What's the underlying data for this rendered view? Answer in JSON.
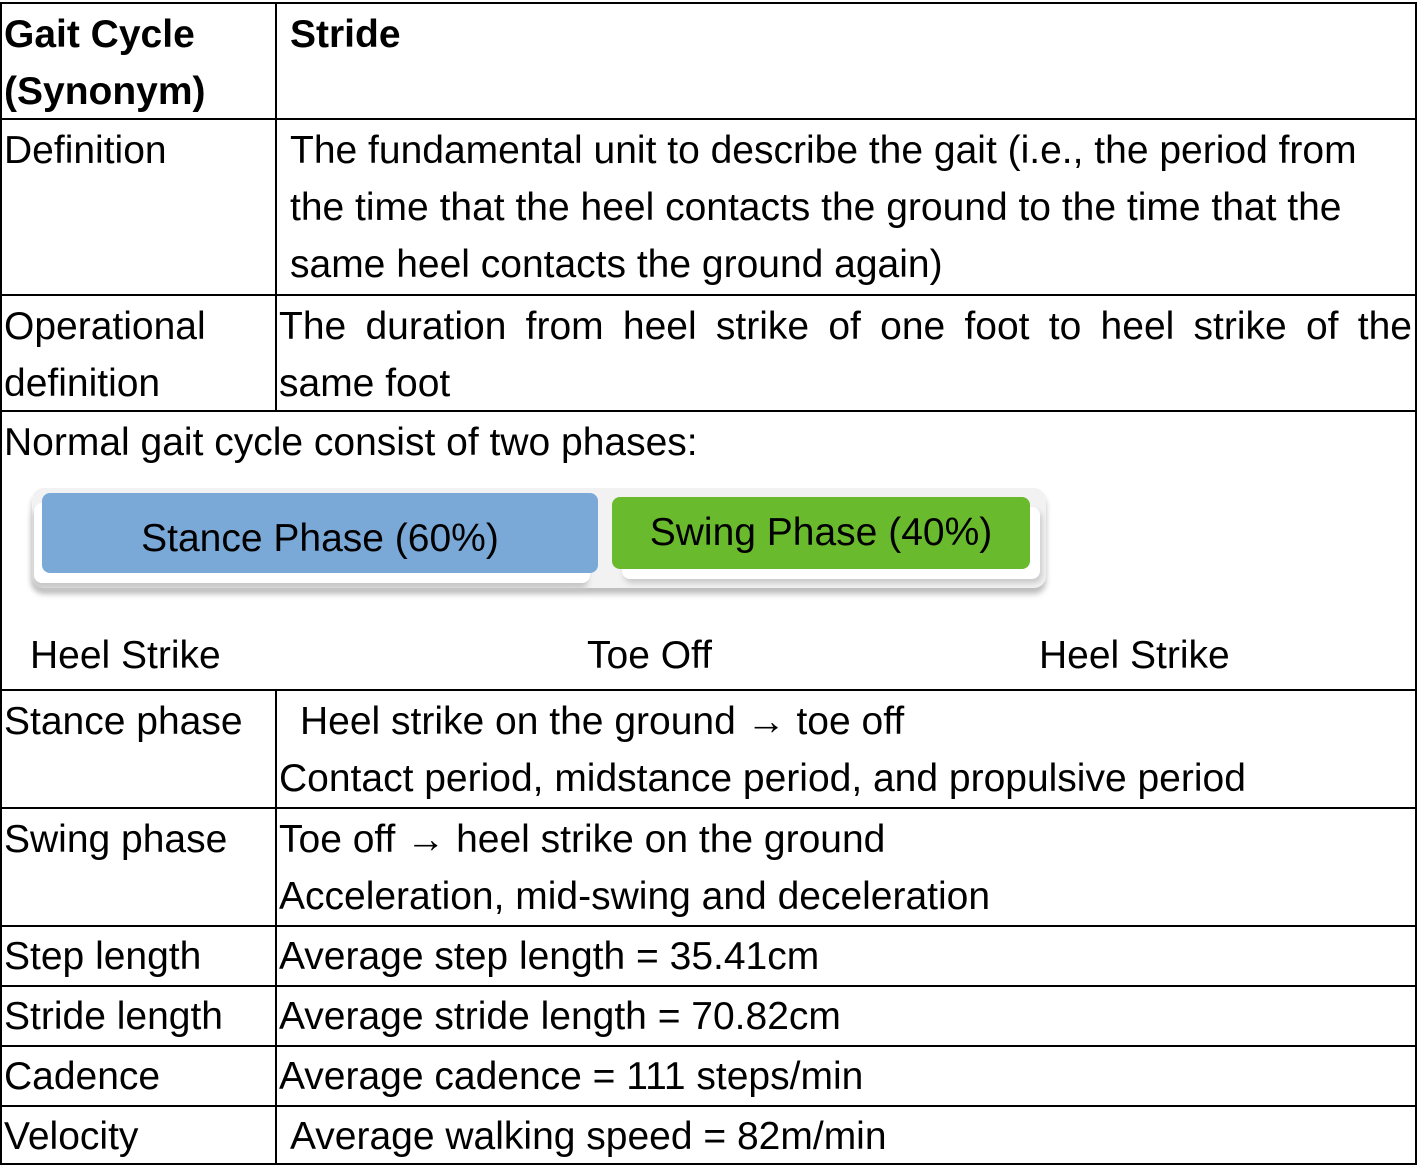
{
  "header": {
    "label": "Gait Cycle\n(Synonym)",
    "label_line1": "Gait Cycle",
    "label_line2": "(Synonym)",
    "value": "Stride"
  },
  "rows": {
    "definition": {
      "label": "Definition",
      "value": "The fundamental unit to describe the gait (i.e., the period from the time that the heel contacts the ground to the time that the same heel contacts the ground again)"
    },
    "operational": {
      "label_line1": "Operational",
      "label_line2": "definition",
      "value": "The duration from heel strike of one foot to heel strike of the same foot"
    },
    "stance": {
      "label": "Stance phase",
      "line1_a": "Heel strike on the ground",
      "arrow": "→",
      "line1_b": "toe off",
      "line2": "Contact period, midstance period, and propulsive period"
    },
    "swing": {
      "label": "Swing phase",
      "line1_a": "Toe off",
      "arrow": "→",
      "line1_b": "heel strike on the ground",
      "line2": "Acceleration, mid-swing and deceleration"
    },
    "step_length": {
      "label": "Step length",
      "value": "Average step length = 35.41cm"
    },
    "stride_length": {
      "label": "Stride length",
      "value": "Average stride length = 70.82cm"
    },
    "cadence": {
      "label": "Cadence",
      "value": "Average cadence = 111 steps/min"
    },
    "velocity": {
      "label": "Velocity",
      "value": "Average walking speed = 82m/min"
    }
  },
  "phases": {
    "intro": "Normal gait cycle consist of two phases:",
    "stance_label": "Stance Phase (60%)",
    "swing_label": "Swing Phase (40%)",
    "stance_color": "#7aa9d8",
    "swing_color": "#6aba2e",
    "markers": [
      "Heel Strike",
      "Toe Off",
      "Heel Strike"
    ]
  }
}
